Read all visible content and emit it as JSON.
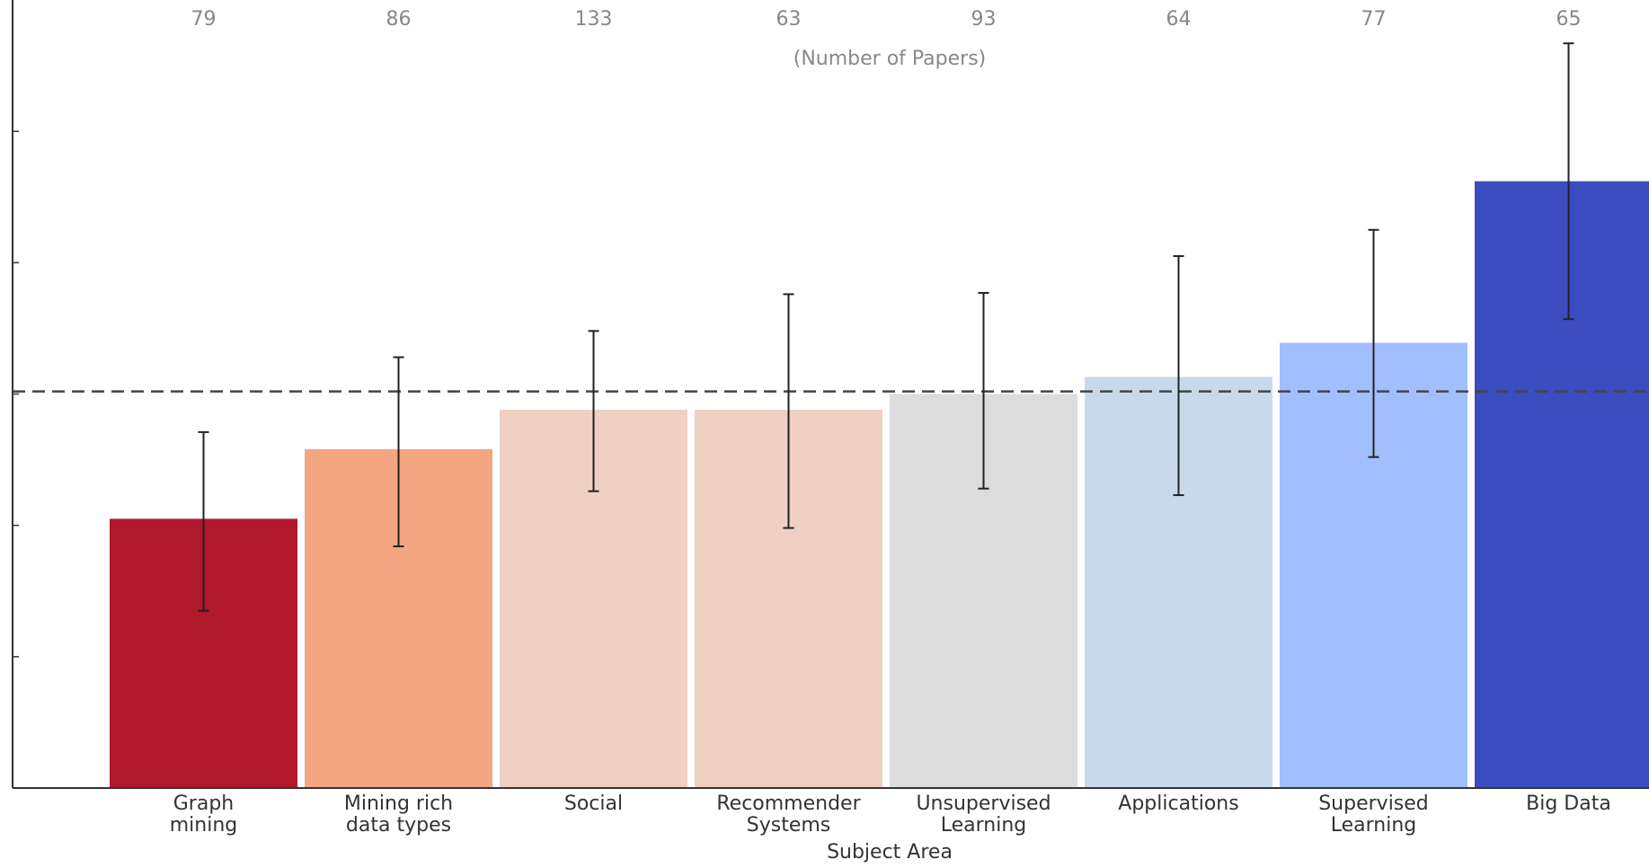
{
  "chart_data": {
    "type": "bar",
    "xlabel": "Subject Area",
    "ylabel": "",
    "count_annotation": "(Number of Papers)",
    "categories": [
      [
        "Graph",
        "mining"
      ],
      [
        "Mining rich",
        "data types"
      ],
      [
        "Social"
      ],
      [
        "Recommender",
        "Systems"
      ],
      [
        "Unsupervised",
        "Learning"
      ],
      [
        "Applications"
      ],
      [
        "Supervised",
        "Learning"
      ],
      [
        "Big Data"
      ]
    ],
    "counts": [
      "79",
      "86",
      "133",
      "63",
      "93",
      "64",
      "77",
      "65"
    ],
    "values": [
      2.05,
      2.58,
      2.88,
      2.88,
      3.0,
      3.13,
      3.39,
      4.62
    ],
    "error_low": [
      1.35,
      1.84,
      2.26,
      1.98,
      2.28,
      2.23,
      2.52,
      3.57
    ],
    "error_high": [
      2.71,
      3.28,
      3.48,
      3.76,
      3.77,
      4.05,
      4.25,
      5.67
    ],
    "reference_line": 3.02,
    "ylim": [
      0,
      6
    ],
    "yticks": [
      1,
      2,
      3,
      4,
      5
    ],
    "colors": [
      "#b2182b",
      "#f4a582",
      "#efd0c2",
      "#efd0c2",
      "#dcdcdc",
      "#c9d9ec",
      "#a1bffc",
      "#3a4cc0"
    ],
    "error_color": "#222222",
    "reference_color": "#444444"
  }
}
